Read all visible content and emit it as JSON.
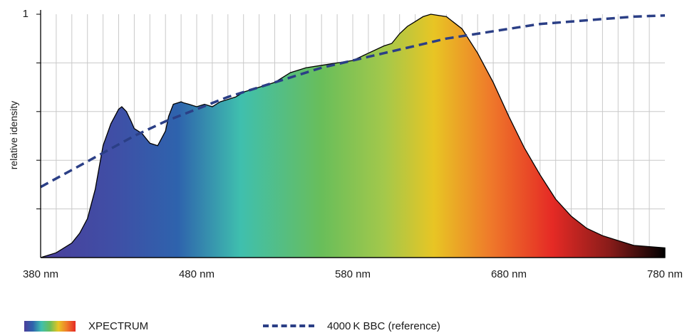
{
  "chart_data": {
    "type": "area",
    "title": "",
    "xlabel": "",
    "ylabel": "relative idensity",
    "xlim": [
      380,
      780
    ],
    "ylim": [
      0,
      1
    ],
    "x_ticks": [
      380,
      480,
      580,
      680,
      780
    ],
    "x_tick_labels": [
      "380 nm",
      "480 nm",
      "580 nm",
      "680 nm",
      "780 nm"
    ],
    "y_tick_labels": [
      "1"
    ],
    "grid": true,
    "legend_position": "bottom",
    "series": [
      {
        "name": "XPECTRUM",
        "style": "filled-area-spectrum-gradient",
        "x": [
          380,
          390,
          400,
          405,
          410,
          415,
          420,
          425,
          430,
          432,
          435,
          438,
          440,
          445,
          450,
          455,
          460,
          462,
          465,
          470,
          472,
          475,
          480,
          485,
          490,
          495,
          500,
          505,
          510,
          520,
          530,
          540,
          550,
          560,
          570,
          580,
          590,
          600,
          605,
          610,
          615,
          620,
          625,
          630,
          640,
          650,
          660,
          670,
          680,
          690,
          700,
          710,
          720,
          730,
          740,
          750,
          760,
          770,
          780
        ],
        "y": [
          0.0,
          0.02,
          0.06,
          0.1,
          0.16,
          0.28,
          0.46,
          0.55,
          0.61,
          0.62,
          0.6,
          0.56,
          0.53,
          0.51,
          0.47,
          0.46,
          0.52,
          0.58,
          0.63,
          0.64,
          0.635,
          0.63,
          0.62,
          0.63,
          0.62,
          0.64,
          0.65,
          0.66,
          0.68,
          0.7,
          0.72,
          0.76,
          0.78,
          0.79,
          0.8,
          0.81,
          0.84,
          0.87,
          0.88,
          0.92,
          0.95,
          0.97,
          0.99,
          1.0,
          0.99,
          0.94,
          0.84,
          0.72,
          0.58,
          0.45,
          0.34,
          0.24,
          0.17,
          0.12,
          0.09,
          0.07,
          0.05,
          0.045,
          0.04
        ]
      },
      {
        "name": "4000 K BBC (reference)",
        "style": "dashed-line",
        "color": "#2b3f86",
        "x": [
          380,
          400,
          420,
          440,
          460,
          480,
          500,
          520,
          540,
          560,
          580,
          600,
          620,
          640,
          660,
          680,
          700,
          720,
          740,
          760,
          780
        ],
        "y": [
          0.29,
          0.36,
          0.43,
          0.5,
          0.56,
          0.61,
          0.66,
          0.7,
          0.74,
          0.78,
          0.81,
          0.84,
          0.87,
          0.9,
          0.92,
          0.94,
          0.96,
          0.97,
          0.98,
          0.99,
          0.995
        ]
      }
    ]
  },
  "legend": {
    "spectrum_label": "XPECTRUM",
    "reference_label": "4000 K BBC (reference)"
  },
  "colors": {
    "spectrum_stops": [
      "#4b3f9b",
      "#2e63ad",
      "#3fbfae",
      "#69be5a",
      "#e8c524",
      "#ef7a2a",
      "#e52a25",
      "#000000"
    ],
    "reference_line": "#2b3f86",
    "grid": "#c9c9c9"
  }
}
